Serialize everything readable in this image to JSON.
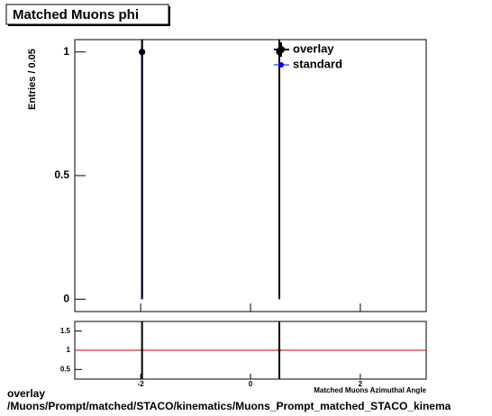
{
  "chart_data": [
    {
      "type": "errorbar",
      "title": "Matched Muons phi",
      "ylabel": "Entries / 0.05",
      "x": [
        -1.975,
        0.525
      ],
      "series": [
        {
          "name": "standard",
          "color": "#0000ff",
          "values": [
            1,
            1
          ],
          "errors": [
            1,
            1
          ]
        },
        {
          "name": "overlay",
          "color": "#000000",
          "values": [
            1,
            1
          ],
          "errors": [
            1,
            1
          ]
        }
      ],
      "xlim": [
        -3.2,
        3.2
      ],
      "ylim": [
        -0.05,
        1.05
      ],
      "yticks": [
        0,
        0.5,
        1
      ],
      "legend": "top-right"
    },
    {
      "type": "ratio",
      "xlabel": "Matched Muons Azimuthal Angle",
      "x": [
        -1.975,
        0.525
      ],
      "values": [
        1,
        1
      ],
      "errors": [
        1,
        1
      ],
      "color": "#000000",
      "reference_line": 1,
      "reference_color": "#cc0000",
      "xlim": [
        -3.2,
        3.2
      ],
      "ylim": [
        0.25,
        1.75
      ],
      "xticks": [
        -2,
        0,
        2
      ],
      "yticks": [
        0.5,
        1,
        1.5
      ]
    }
  ],
  "footer": {
    "label": "overlay",
    "path": "/Muons/Prompt/matched/STACO/kinematics/Muons_Prompt_matched_STACO_kinema"
  }
}
